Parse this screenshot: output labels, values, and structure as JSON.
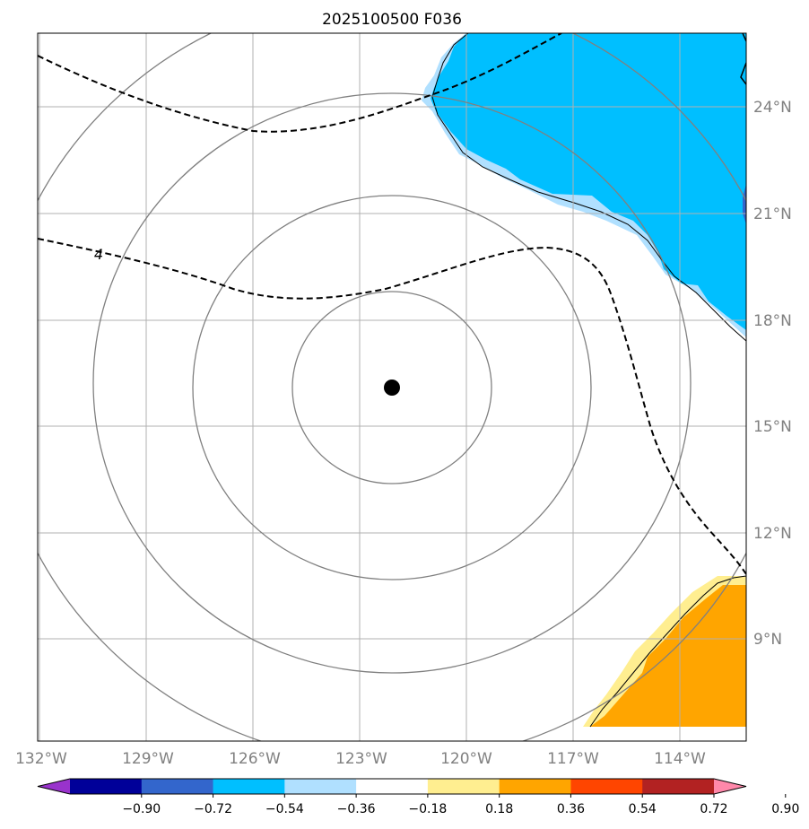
{
  "title": "2025100500 F036",
  "lon_labels": [
    "132°W",
    "129°W",
    "126°W",
    "123°W",
    "120°W",
    "117°W",
    "114°W"
  ],
  "lat_labels": [
    "24°N",
    "21°N",
    "18°N",
    "15°N",
    "12°N",
    "9°N"
  ],
  "contour_label": "4",
  "colorbar": {
    "colors": [
      "#9933cc",
      "#000099",
      "#3366cc",
      "#00bfff",
      "#b0e0ff",
      "#ffffff",
      "#ffee90",
      "#ffa500",
      "#ff4500",
      "#b22222",
      "#ff88aa"
    ],
    "tick_labels": [
      "−0.90",
      "−0.72",
      "−0.54",
      "−0.36",
      "−0.18",
      "0.18",
      "0.36",
      "0.54",
      "0.72",
      "0.90"
    ]
  },
  "map": {
    "storm_center": "storm-center-marker",
    "ring_color": "#808080",
    "negative_color": "#00bfff",
    "positive_color": "#ffa500"
  }
}
